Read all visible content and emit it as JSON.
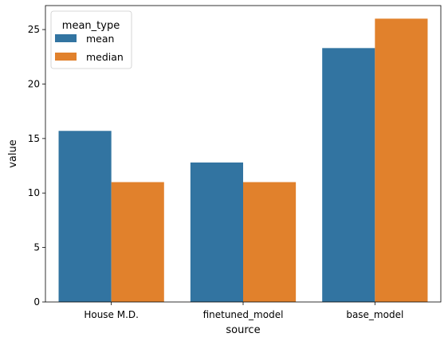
{
  "chart_data": {
    "type": "bar",
    "title": "",
    "xlabel": "source",
    "ylabel": "value",
    "categories": [
      "House M.D.",
      "finetuned_model",
      "base_model"
    ],
    "series": [
      {
        "name": "mean",
        "color": "#3274a1",
        "values": [
          15.7,
          12.8,
          23.3
        ]
      },
      {
        "name": "median",
        "color": "#e1812c",
        "values": [
          11.0,
          11.0,
          26.0
        ]
      }
    ],
    "ylim": [
      0,
      27.2
    ],
    "yticks": [
      0,
      5,
      10,
      15,
      20,
      25
    ],
    "legend": {
      "title": "mean_type",
      "placement": "top-left"
    },
    "grid": false
  }
}
